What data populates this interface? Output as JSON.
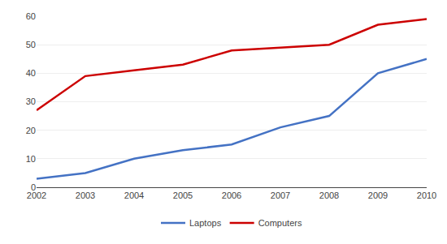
{
  "chart_data": {
    "type": "line",
    "x": [
      2002,
      2003,
      2004,
      2005,
      2006,
      2007,
      2008,
      2009,
      2010
    ],
    "series": [
      {
        "name": "Laptops",
        "color": "#4472C4",
        "values": [
          3,
          5,
          10,
          13,
          15,
          21,
          25,
          40,
          45
        ]
      },
      {
        "name": "Computers",
        "color": "#CC0000",
        "values": [
          27,
          39,
          41,
          43,
          48,
          49,
          50,
          57,
          59
        ]
      }
    ],
    "xlim": [
      2002,
      2010
    ],
    "xticks": [
      2002,
      2003,
      2004,
      2005,
      2006,
      2007,
      2008,
      2009,
      2010
    ],
    "ylim": [
      0,
      60
    ],
    "yticks": [
      0,
      10,
      20,
      30,
      40,
      50,
      60
    ],
    "grid": true,
    "legend": "bottom"
  }
}
